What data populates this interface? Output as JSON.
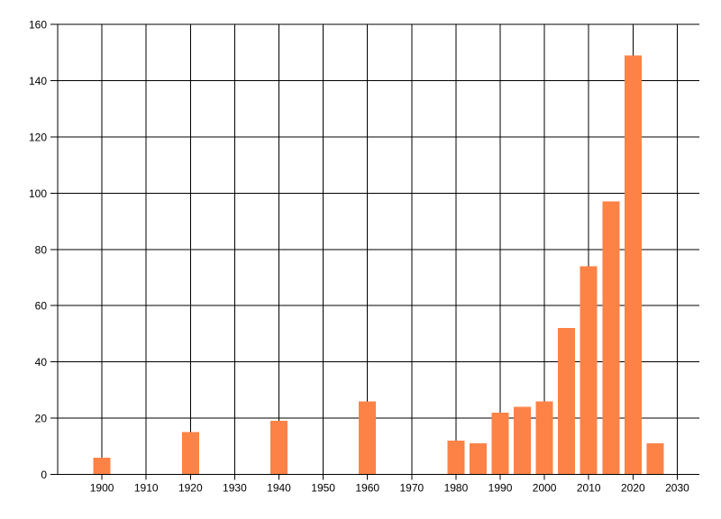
{
  "chart_data": {
    "type": "bar",
    "title": "",
    "xlabel": "",
    "ylabel": "",
    "x": [
      1900,
      1920,
      1940,
      1960,
      1980,
      1985,
      1990,
      1995,
      2000,
      2005,
      2010,
      2015,
      2020,
      2025
    ],
    "values": [
      6,
      15,
      19,
      26,
      12,
      11,
      22,
      24,
      26,
      52,
      74,
      97,
      149,
      11
    ],
    "xlim": [
      1890,
      2035
    ],
    "ylim": [
      0,
      160
    ],
    "x_ticks": [
      1900,
      1910,
      1920,
      1930,
      1940,
      1950,
      1960,
      1970,
      1980,
      1990,
      2000,
      2010,
      2020,
      2030
    ],
    "y_ticks": [
      0,
      20,
      40,
      60,
      80,
      100,
      120,
      140,
      160
    ],
    "grid": true,
    "legend_position": "none",
    "colors": {
      "bar": "#FC8246",
      "grid": "#000000",
      "axis": "#000000",
      "text": "#000000",
      "background": "#FFFFFF"
    }
  }
}
